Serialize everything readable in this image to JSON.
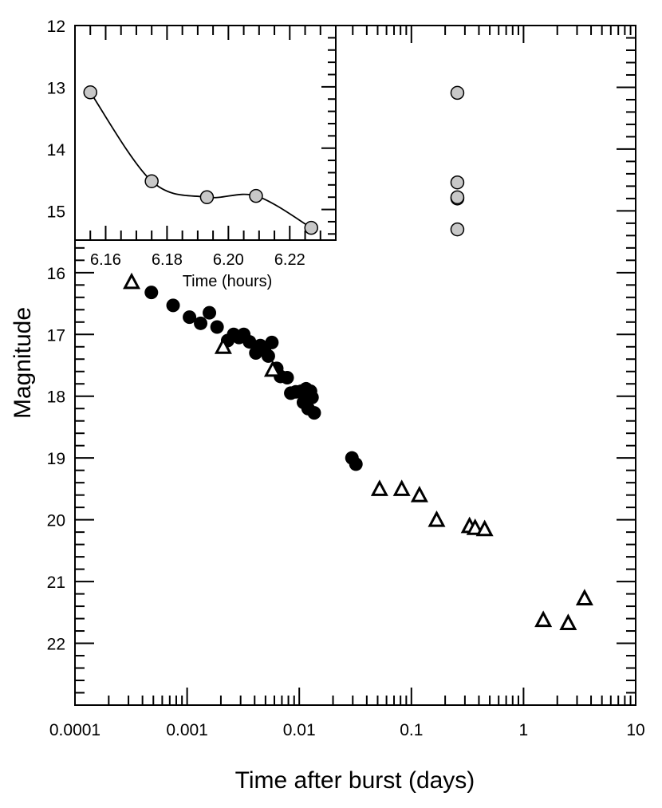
{
  "chart_data": [
    {
      "type": "scatter",
      "title": "",
      "xlabel": "Time after burst (days)",
      "ylabel": "Magnitude",
      "x_scale": "log",
      "xlim": [
        0.0001,
        10
      ],
      "ylim": [
        12,
        23
      ],
      "y_inverted": true,
      "grid": false,
      "x_tick_labels": [
        "0.0001",
        "0.001",
        "0.01",
        "0.1",
        "1",
        "10"
      ],
      "y_tick_labels": [
        "12",
        "13",
        "14",
        "15",
        "16",
        "17",
        "18",
        "19",
        "20",
        "21",
        "22"
      ],
      "series": [
        {
          "marker": "filled-circle",
          "color": "#000000",
          "points": [
            [
              0.00048,
              16.32
            ],
            [
              0.00075,
              16.53
            ],
            [
              0.00105,
              16.72
            ],
            [
              0.00132,
              16.82
            ],
            [
              0.00158,
              16.65
            ],
            [
              0.00185,
              16.88
            ],
            [
              0.0023,
              17.1
            ],
            [
              0.0026,
              17.0
            ],
            [
              0.0029,
              17.05
            ],
            [
              0.0032,
              17.0
            ],
            [
              0.0036,
              17.12
            ],
            [
              0.0041,
              17.3
            ],
            [
              0.0045,
              17.18
            ],
            [
              0.0049,
              17.23
            ],
            [
              0.0053,
              17.35
            ],
            [
              0.0057,
              17.13
            ],
            [
              0.0063,
              17.55
            ],
            [
              0.0068,
              17.68
            ],
            [
              0.0078,
              17.7
            ],
            [
              0.0084,
              17.95
            ],
            [
              0.0093,
              17.93
            ],
            [
              0.0104,
              17.92
            ],
            [
              0.0109,
              18.1
            ],
            [
              0.0115,
              17.88
            ],
            [
              0.012,
              18.2
            ],
            [
              0.0126,
              17.92
            ],
            [
              0.013,
              18.02
            ],
            [
              0.0136,
              18.27
            ],
            [
              0.0295,
              19.0
            ],
            [
              0.032,
              19.1
            ]
          ]
        },
        {
          "marker": "open-triangle",
          "color": "#000000",
          "points": [
            [
              0.00032,
              16.15
            ],
            [
              0.0021,
              17.2
            ],
            [
              0.0058,
              17.57
            ],
            [
              0.052,
              19.5
            ],
            [
              0.082,
              19.5
            ],
            [
              0.118,
              19.6
            ],
            [
              0.168,
              20.0
            ],
            [
              0.33,
              20.1
            ],
            [
              0.37,
              20.13
            ],
            [
              0.45,
              20.15
            ],
            [
              1.5,
              21.62
            ],
            [
              2.5,
              21.67
            ],
            [
              3.5,
              21.27
            ]
          ]
        },
        {
          "marker": "grey-circle",
          "color": "#c8c8c8",
          "points": [
            [
              0.257,
              13.09
            ],
            [
              0.257,
              14.54
            ],
            [
              0.257,
              14.8
            ],
            [
              0.257,
              14.78
            ],
            [
              0.257,
              15.3
            ]
          ]
        }
      ]
    },
    {
      "type": "line",
      "inset": true,
      "xlabel": "Time (hours)",
      "xlim": [
        6.15,
        6.235
      ],
      "ylim": [
        12,
        15.5
      ],
      "y_inverted": true,
      "x_tick_labels": [
        "6.16",
        "6.18",
        "6.20",
        "6.22"
      ],
      "series": [
        {
          "marker": "grey-circle",
          "color": "#c8c8c8",
          "x": [
            6.155,
            6.175,
            6.193,
            6.209,
            6.227
          ],
          "y": [
            13.09,
            14.54,
            14.8,
            14.78,
            15.3
          ]
        }
      ]
    }
  ]
}
